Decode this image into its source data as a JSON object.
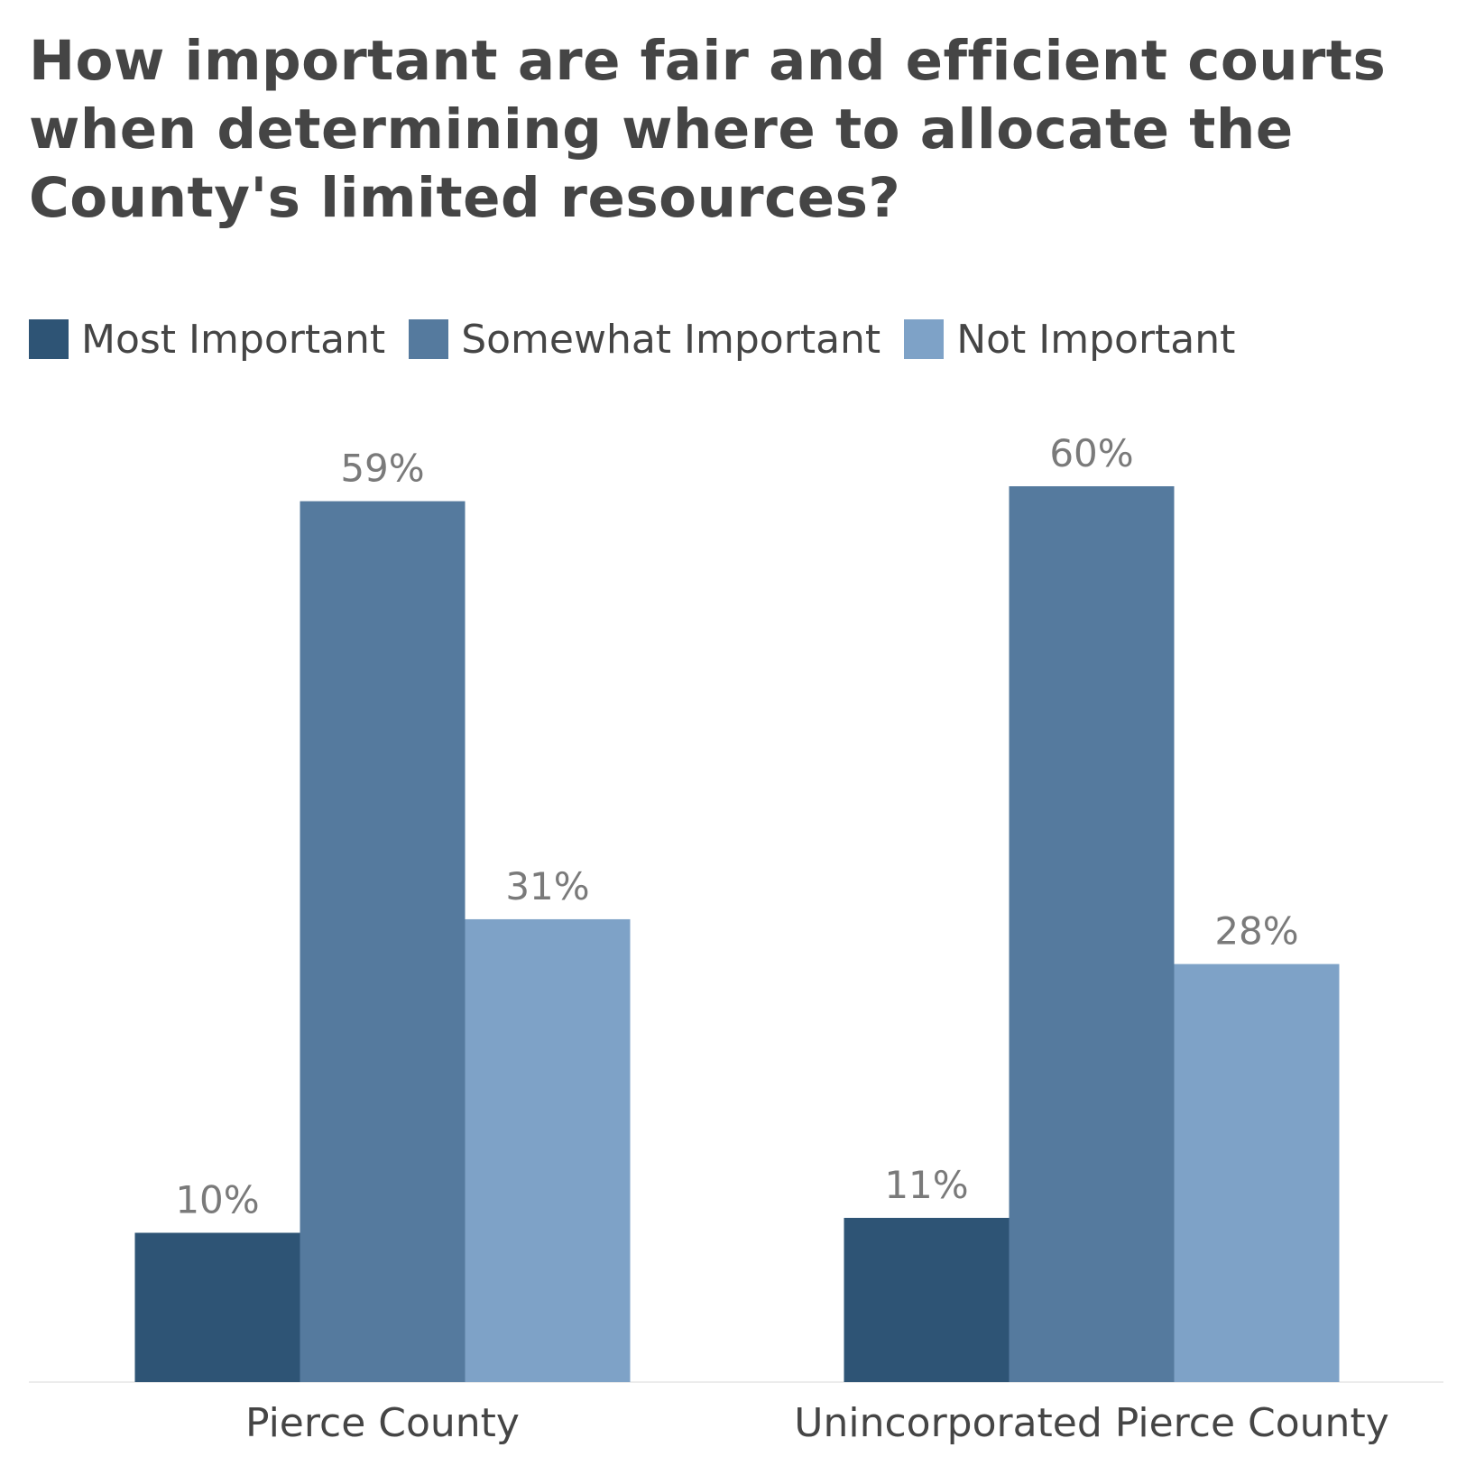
{
  "chart_data": {
    "type": "bar",
    "title": "How important are fair and efficient courts when determining where to allocate the County's limited resources?",
    "xlabel": "",
    "ylabel": "",
    "ylim": [
      0,
      65
    ],
    "grid": false,
    "legend_position": "top-left",
    "categories": [
      "Pierce County",
      "Unincorporated Pierce County"
    ],
    "series": [
      {
        "name": "Most Important",
        "values": [
          10,
          11
        ],
        "labels": [
          "10%",
          "11%"
        ],
        "color": "#2e5475"
      },
      {
        "name": "Somewhat Important",
        "values": [
          59,
          60
        ],
        "labels": [
          "59%",
          "60%"
        ],
        "color": "#557a9e"
      },
      {
        "name": "Not Important",
        "values": [
          31,
          28
        ],
        "labels": [
          "31%",
          "28%"
        ],
        "color": "#7ea2c7"
      }
    ]
  }
}
